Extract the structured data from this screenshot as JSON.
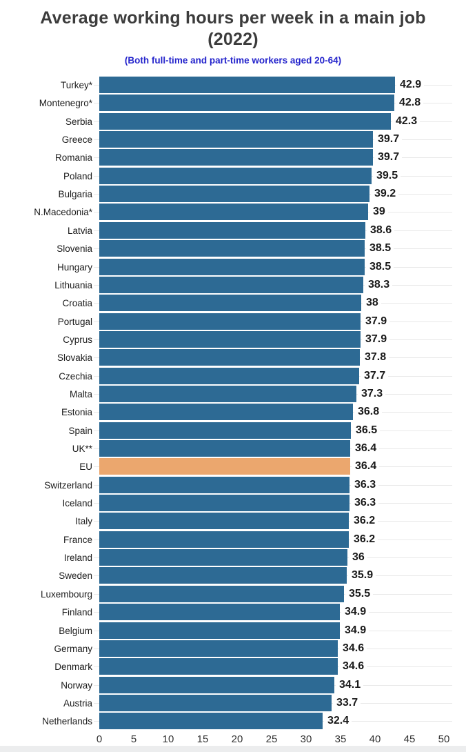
{
  "title": "Average working hours per week in a main job (2022)",
  "subtitle": "(Both full-time and part-time workers aged 20-64)",
  "chart_data": {
    "type": "bar",
    "orientation": "horizontal",
    "title": "Average working hours per week in a main job (2022)",
    "subtitle": "(Both full-time and part-time workers aged 20-64)",
    "xlabel": "",
    "ylabel": "",
    "xlim": [
      0,
      50
    ],
    "x_ticks": [
      0,
      5,
      10,
      15,
      20,
      25,
      30,
      35,
      40,
      45,
      50
    ],
    "grid": "horizontal-row-lines",
    "value_labels": "end-of-bar",
    "highlight_category": "EU",
    "categories": [
      "Turkey*",
      "Montenegro*",
      "Serbia",
      "Greece",
      "Romania",
      "Poland",
      "Bulgaria",
      "N.Macedonia*",
      "Latvia",
      "Slovenia",
      "Hungary",
      "Lithuania",
      "Croatia",
      "Portugal",
      "Cyprus",
      "Slovakia",
      "Czechia",
      "Malta",
      "Estonia",
      "Spain",
      "UK**",
      "EU",
      "Switzerland",
      "Iceland",
      "Italy",
      "France",
      "Ireland",
      "Sweden",
      "Luxembourg",
      "Finland",
      "Belgium",
      "Germany",
      "Denmark",
      "Norway",
      "Austria",
      "Netherlands"
    ],
    "values": [
      42.9,
      42.8,
      42.3,
      39.7,
      39.7,
      39.5,
      39.2,
      39,
      38.6,
      38.5,
      38.5,
      38.3,
      38,
      37.9,
      37.9,
      37.8,
      37.7,
      37.3,
      36.8,
      36.5,
      36.4,
      36.4,
      36.3,
      36.3,
      36.2,
      36.2,
      36,
      35.9,
      35.5,
      34.9,
      34.9,
      34.6,
      34.6,
      34.1,
      33.7,
      32.4
    ],
    "colors": {
      "bar": "#2D6A94",
      "highlight": "#EBA76E",
      "grid": "#e8e8e8",
      "title": "#3C3C3C",
      "subtitle": "#2424CC",
      "value_label": "#1a1a1a",
      "category_label": "#1b1b1b",
      "tick_label": "#333333"
    }
  }
}
